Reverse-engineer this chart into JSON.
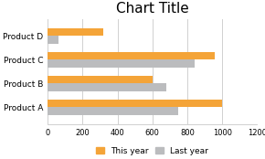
{
  "title": "Chart Title",
  "categories": [
    "Product A",
    "Product B",
    "Product C",
    "Product D"
  ],
  "this_year": [
    1000,
    600,
    960,
    320
  ],
  "last_year": [
    750,
    680,
    840,
    60
  ],
  "color_this_year": "#F4A438",
  "color_last_year": "#BBBCBE",
  "xlim": [
    0,
    1200
  ],
  "xticks": [
    0,
    200,
    400,
    600,
    800,
    1000,
    1200
  ],
  "legend_this_year": "This year",
  "legend_last_year": "Last year",
  "bg_color": "#FFFFFF",
  "grid_color": "#D0D0D0",
  "title_fontsize": 11,
  "label_fontsize": 6.5,
  "tick_fontsize": 6,
  "legend_fontsize": 6.5,
  "bar_height": 0.32
}
